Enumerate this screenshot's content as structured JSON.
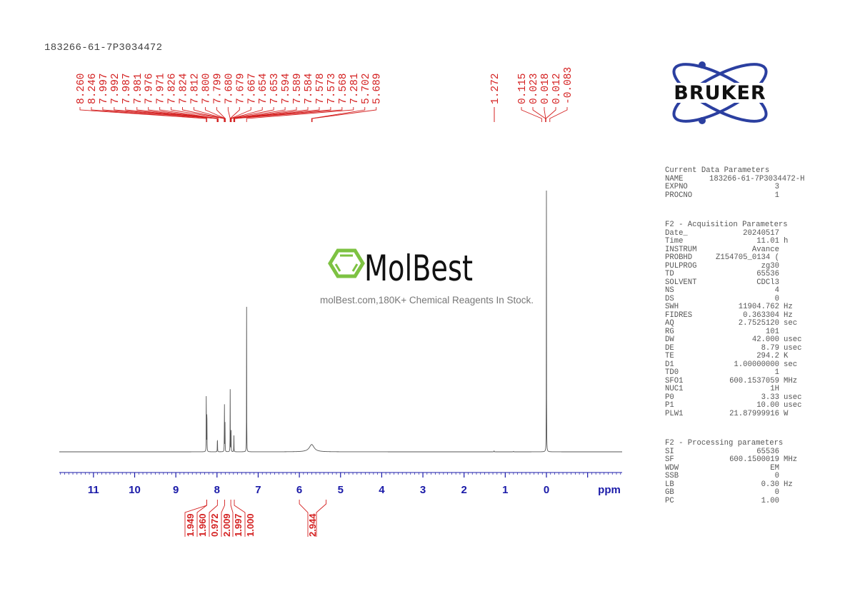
{
  "title": "183266-61-7P3034472",
  "watermark": {
    "brand": "MolBest",
    "caption": "molBest.com,180K+ Chemical Reagents In Stock.",
    "accent_color": "#7dc242"
  },
  "logo": {
    "text": "BRUKER",
    "orbit_color": "#2b3fa0",
    "text_color": "#111111"
  },
  "parameters": {
    "current_data": {
      "heading": "Current Data Parameters",
      "rows": [
        {
          "key": "NAME",
          "value": "183266-61-7P3034472-H",
          "unit": ""
        },
        {
          "key": "EXPNO",
          "value": "3",
          "unit": ""
        },
        {
          "key": "PROCNO",
          "value": "1",
          "unit": ""
        }
      ]
    },
    "acquisition": {
      "heading": "F2 - Acquisition Parameters",
      "rows": [
        {
          "key": "Date_",
          "value": "20240517",
          "unit": ""
        },
        {
          "key": "Time",
          "value": "11.01",
          "unit": "h"
        },
        {
          "key": "INSTRUM",
          "value": "Avance",
          "unit": ""
        },
        {
          "key": "PROBHD",
          "value": "Z154705_0134 (",
          "unit": ""
        },
        {
          "key": "PULPROG",
          "value": "zg30",
          "unit": ""
        },
        {
          "key": "TD",
          "value": "65536",
          "unit": ""
        },
        {
          "key": "SOLVENT",
          "value": "CDCl3",
          "unit": ""
        },
        {
          "key": "NS",
          "value": "4",
          "unit": ""
        },
        {
          "key": "DS",
          "value": "0",
          "unit": ""
        },
        {
          "key": "SWH",
          "value": "11904.762",
          "unit": "Hz"
        },
        {
          "key": "FIDRES",
          "value": "0.363304",
          "unit": "Hz"
        },
        {
          "key": "AQ",
          "value": "2.7525120",
          "unit": "sec"
        },
        {
          "key": "RG",
          "value": "101",
          "unit": ""
        },
        {
          "key": "DW",
          "value": "42.000",
          "unit": "usec"
        },
        {
          "key": "DE",
          "value": "8.79",
          "unit": "usec"
        },
        {
          "key": "TE",
          "value": "294.2",
          "unit": "K"
        },
        {
          "key": "D1",
          "value": "1.00000000",
          "unit": "sec"
        },
        {
          "key": "TD0",
          "value": "1",
          "unit": ""
        },
        {
          "key": "SFO1",
          "value": "600.1537059",
          "unit": "MHz"
        },
        {
          "key": "NUC1",
          "value": "1H",
          "unit": ""
        },
        {
          "key": "P0",
          "value": "3.33",
          "unit": "usec"
        },
        {
          "key": "P1",
          "value": "10.00",
          "unit": "usec"
        },
        {
          "key": "PLW1",
          "value": "21.87999916",
          "unit": "W"
        }
      ]
    },
    "processing": {
      "heading": "F2 - Processing parameters",
      "rows": [
        {
          "key": "SI",
          "value": "65536",
          "unit": ""
        },
        {
          "key": "SF",
          "value": "600.1500019",
          "unit": "MHz"
        },
        {
          "key": "WDW",
          "value": "EM",
          "unit": ""
        },
        {
          "key": "SSB",
          "value": "0",
          "unit": ""
        },
        {
          "key": "LB",
          "value": "0.30",
          "unit": "Hz"
        },
        {
          "key": "GB",
          "value": "0",
          "unit": ""
        },
        {
          "key": "PC",
          "value": "1.00",
          "unit": ""
        }
      ]
    }
  },
  "chart_data": {
    "type": "line",
    "title": "183266-61-7P3034472",
    "xlabel": "ppm",
    "ylabel": "",
    "x_reversed": true,
    "xlim": [
      11.8,
      -1.8
    ],
    "x_ticks": [
      11,
      10,
      9,
      8,
      7,
      6,
      5,
      4,
      3,
      2,
      1,
      0
    ],
    "grid": false,
    "colors": {
      "spectrum": "#555555",
      "peak_labels": "#d42020",
      "axis": "#1a1aa8"
    },
    "peak_label_groups": [
      {
        "values": [
          "8.260",
          "8.246",
          "7.997",
          "7.992",
          "7.987",
          "7.981",
          "7.976",
          "7.971",
          "7.826",
          "7.824",
          "7.812",
          "7.800",
          "7.799",
          "7.680",
          "7.679",
          "7.667",
          "7.654",
          "7.653",
          "7.594",
          "7.589",
          "7.584",
          "7.578",
          "7.573",
          "7.568",
          "7.281",
          "5.702",
          "5.689"
        ]
      },
      {
        "values": [
          "1.272"
        ]
      },
      {
        "values": [
          "0.115",
          "0.023",
          "0.018",
          "0.012",
          "-0.083"
        ]
      }
    ],
    "peaks": [
      {
        "ppm": 8.26,
        "height": 0.256
      },
      {
        "ppm": 8.246,
        "height": 0.252
      },
      {
        "ppm": 7.99,
        "height": 0.082
      },
      {
        "ppm": 7.82,
        "height": 0.238
      },
      {
        "ppm": 7.805,
        "height": 0.12
      },
      {
        "ppm": 7.68,
        "height": 0.238
      },
      {
        "ppm": 7.66,
        "height": 0.13
      },
      {
        "ppm": 7.59,
        "height": 0.078
      },
      {
        "ppm": 7.281,
        "height": 0.555
      },
      {
        "ppm": 5.7,
        "height": 0.028,
        "broad": true
      },
      {
        "ppm": 1.272,
        "height": 0.006
      },
      {
        "ppm": 0.8,
        "height": 0.003
      },
      {
        "ppm": 0.0,
        "height": 1.0
      }
    ],
    "integrals": [
      {
        "value": "1.949",
        "from": 8.3,
        "to": 8.2
      },
      {
        "value": "1.960",
        "from": 8.26,
        "to": 8.24
      },
      {
        "value": "0.972",
        "from": 8.02,
        "to": 7.96
      },
      {
        "value": "2.009",
        "from": 7.84,
        "to": 7.79
      },
      {
        "value": "1.997",
        "from": 7.69,
        "to": 7.64
      },
      {
        "value": "1.000",
        "from": 7.6,
        "to": 7.56
      },
      {
        "value": "2.944",
        "from": 6.0,
        "to": 5.35
      }
    ]
  }
}
